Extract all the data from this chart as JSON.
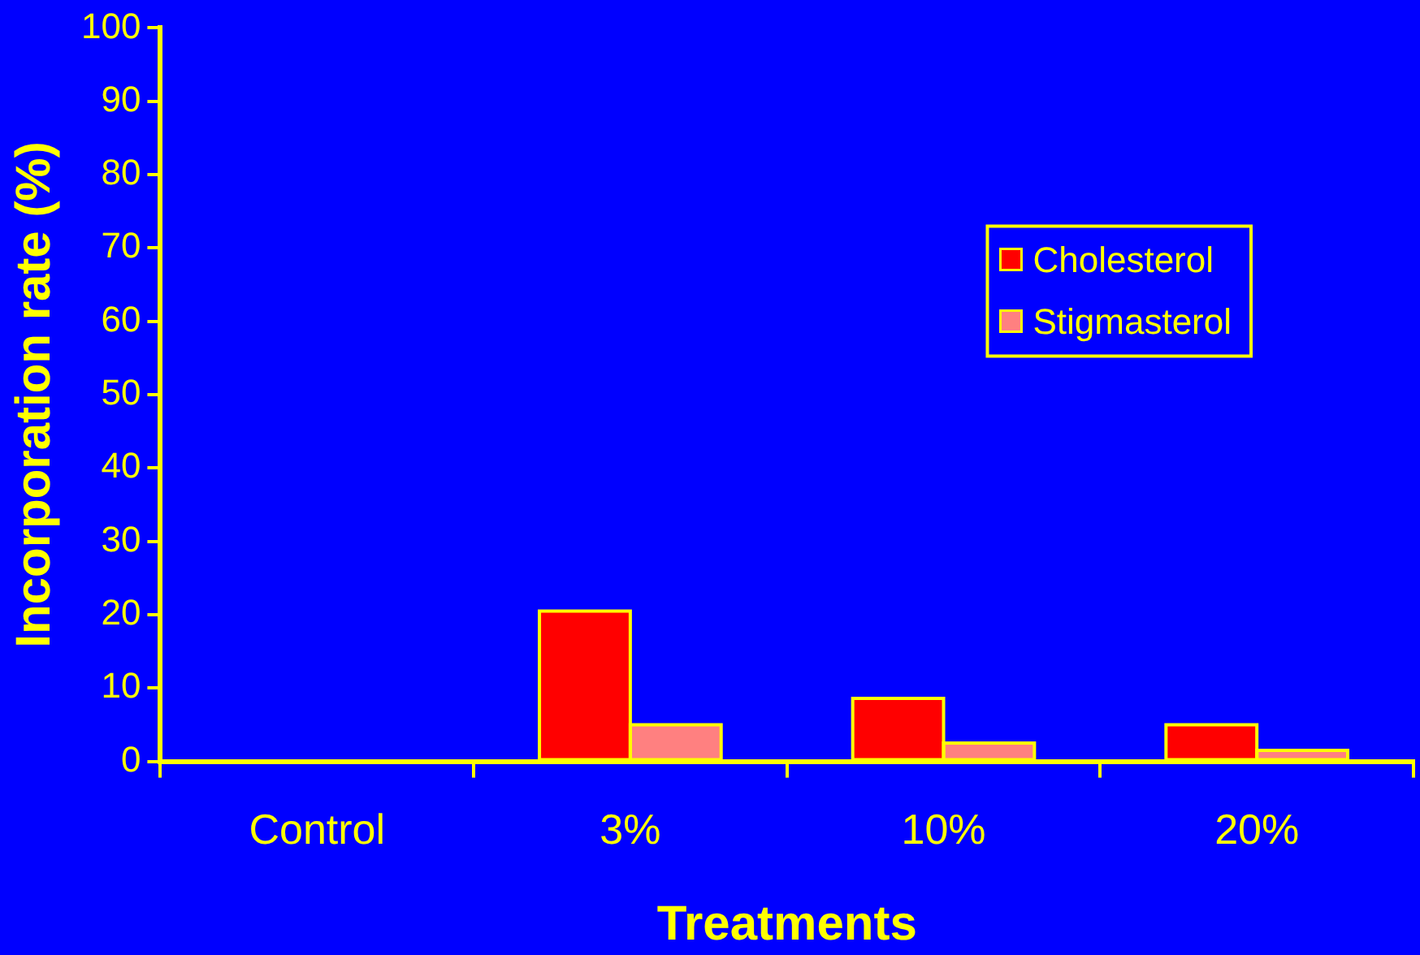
{
  "chart_data": {
    "type": "bar",
    "xlabel": "Treatments",
    "ylabel": "Incorporation rate (%)",
    "categories": [
      "Control",
      "3%",
      "10%",
      "20%"
    ],
    "series": [
      {
        "name": "Cholesterol",
        "color": "#ff0000",
        "values": [
          null,
          20.5,
          8.6,
          5.0
        ]
      },
      {
        "name": "Stigmasterol",
        "color": "#ff8080",
        "values": [
          null,
          5.0,
          2.5,
          1.5
        ]
      }
    ],
    "ylim": [
      0,
      100
    ],
    "yticks": [
      0,
      10,
      20,
      30,
      40,
      50,
      60,
      70,
      80,
      90,
      100
    ],
    "grid": false,
    "legend": "top right"
  }
}
